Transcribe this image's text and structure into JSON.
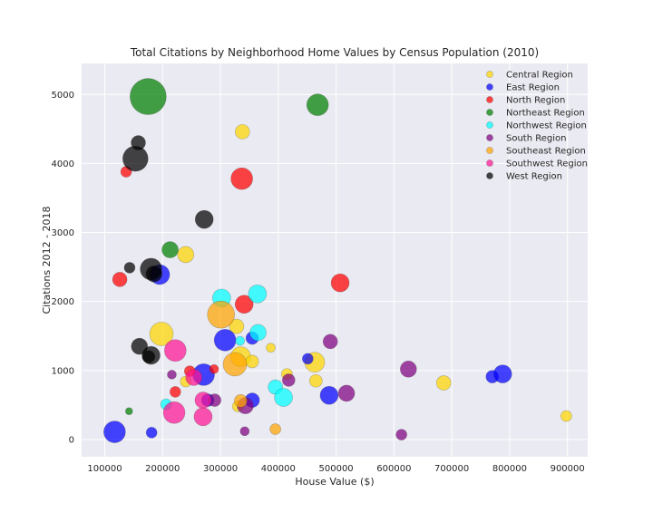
{
  "chart_data": {
    "type": "scatter",
    "title": "Total Citations by Neighborhood Home Values by Census Population (2010)",
    "xlabel": "House Value ($)",
    "ylabel": "Citations 2012 - 2018",
    "xlim": [
      60000,
      935000
    ],
    "ylim": [
      -250,
      5450
    ],
    "xticks": [
      100000,
      200000,
      300000,
      400000,
      500000,
      600000,
      700000,
      800000,
      900000
    ],
    "yticks": [
      0,
      1000,
      2000,
      3000,
      4000,
      5000
    ],
    "grid": true,
    "legend_position": "top-right",
    "series": [
      {
        "name": "Central Region",
        "color": "#ffd700",
        "points": [
          [
            338000,
            4460,
            8
          ],
          [
            240000,
            2680,
            9
          ],
          [
            198000,
            1530,
            13
          ],
          [
            328000,
            1640,
            8
          ],
          [
            335000,
            1200,
            11
          ],
          [
            355000,
            1130,
            7
          ],
          [
            387000,
            1330,
            5
          ],
          [
            415000,
            950,
            6
          ],
          [
            463000,
            1120,
            11
          ],
          [
            465000,
            850,
            7
          ],
          [
            686000,
            820,
            8
          ],
          [
            898000,
            340,
            6
          ],
          [
            240000,
            840,
            6
          ],
          [
            330000,
            480,
            6
          ]
        ]
      },
      {
        "name": "East Region",
        "color": "#0000ff",
        "points": [
          [
            117000,
            110,
            12
          ],
          [
            181000,
            100,
            6
          ],
          [
            195000,
            2390,
            11
          ],
          [
            271000,
            940,
            12
          ],
          [
            308000,
            1440,
            12
          ],
          [
            355000,
            1470,
            7
          ],
          [
            355000,
            570,
            8
          ],
          [
            451000,
            1170,
            6
          ],
          [
            488000,
            640,
            10
          ],
          [
            770000,
            910,
            7
          ],
          [
            788000,
            950,
            10
          ],
          [
            278000,
            570,
            7
          ]
        ]
      },
      {
        "name": "North Region",
        "color": "#ff0000",
        "points": [
          [
            137000,
            3880,
            6
          ],
          [
            337000,
            3780,
            12
          ],
          [
            126000,
            2320,
            8
          ],
          [
            341000,
            1960,
            10
          ],
          [
            507000,
            2270,
            10
          ],
          [
            247000,
            990,
            6
          ],
          [
            289000,
            1020,
            5
          ],
          [
            222000,
            690,
            6
          ]
        ]
      },
      {
        "name": "Northeast Region",
        "color": "#008000",
        "points": [
          [
            175000,
            4970,
            20
          ],
          [
            468000,
            4850,
            12
          ],
          [
            213000,
            2750,
            9
          ],
          [
            142000,
            410,
            4
          ]
        ]
      },
      {
        "name": "Northwest Region",
        "color": "#00ffff",
        "points": [
          [
            302000,
            2050,
            10
          ],
          [
            364000,
            2110,
            10
          ],
          [
            365000,
            1550,
            9
          ],
          [
            334000,
            1430,
            5
          ],
          [
            395000,
            760,
            8
          ],
          [
            409000,
            610,
            10
          ],
          [
            206000,
            510,
            6
          ]
        ]
      },
      {
        "name": "South Region",
        "color": "#800080",
        "points": [
          [
            490000,
            1420,
            8
          ],
          [
            625000,
            1020,
            9
          ],
          [
            518000,
            670,
            9
          ],
          [
            418000,
            860,
            7
          ],
          [
            216000,
            940,
            5
          ],
          [
            290000,
            570,
            7
          ],
          [
            343000,
            490,
            9
          ],
          [
            342000,
            120,
            5
          ],
          [
            613000,
            70,
            6
          ]
        ]
      },
      {
        "name": "Southeast Region",
        "color": "#ffa500",
        "points": [
          [
            301000,
            1810,
            15
          ],
          [
            325000,
            1090,
            13
          ],
          [
            335000,
            560,
            7
          ],
          [
            395000,
            150,
            6
          ]
        ]
      },
      {
        "name": "Southwest Region",
        "color": "#ff1493",
        "points": [
          [
            222000,
            1290,
            12
          ],
          [
            254000,
            900,
            9
          ],
          [
            270000,
            570,
            9
          ],
          [
            220000,
            390,
            12
          ],
          [
            270000,
            330,
            10
          ]
        ]
      },
      {
        "name": "West Region",
        "color": "#000000",
        "points": [
          [
            158000,
            4300,
            8
          ],
          [
            153000,
            4070,
            14
          ],
          [
            272000,
            3190,
            10
          ],
          [
            143000,
            2490,
            6
          ],
          [
            180000,
            2470,
            12
          ],
          [
            185000,
            2400,
            9
          ],
          [
            160000,
            1350,
            9
          ],
          [
            180000,
            1220,
            10
          ],
          [
            176000,
            1200,
            7
          ]
        ]
      }
    ]
  }
}
